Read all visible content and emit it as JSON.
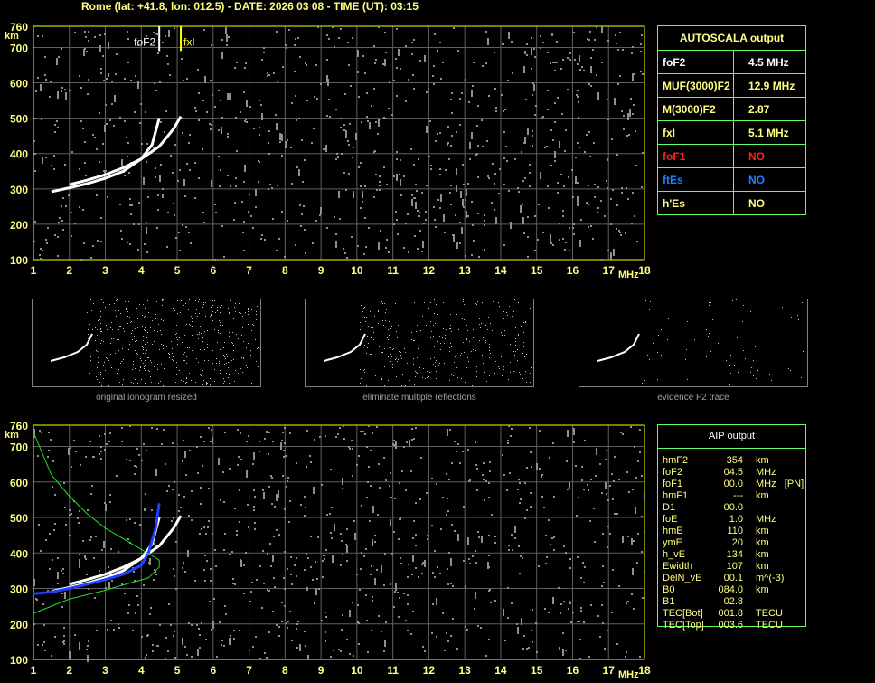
{
  "title": "Rome (lat: +41.8, lon: 012.5) - DATE: 2026 03 08 - TIME (UT): 03:15",
  "chart_data": [
    {
      "type": "scatter",
      "name": "ionogram-autoscala",
      "xlabel": "MHz",
      "ylabel": "km",
      "xlim": [
        1,
        18
      ],
      "ylim": [
        100,
        760
      ],
      "xticks": [
        1,
        2,
        3,
        4,
        5,
        6,
        7,
        8,
        9,
        10,
        11,
        12,
        13,
        14,
        15,
        16,
        17,
        18
      ],
      "yticks": [
        100,
        200,
        300,
        400,
        500,
        600,
        700,
        760
      ],
      "grid": true,
      "markers": [
        {
          "label": "foF2",
          "x": 4.5,
          "color": "#ffffff"
        },
        {
          "label": "fxI",
          "x": 5.1,
          "color": "#ffff00"
        }
      ],
      "traces": [
        {
          "color": "#ffffff",
          "points": [
            [
              1.5,
              292
            ],
            [
              2,
              303
            ],
            [
              2.5,
              315
            ],
            [
              3,
              330
            ],
            [
              3.5,
              350
            ],
            [
              4,
              385
            ],
            [
              4.3,
              425
            ],
            [
              4.5,
              500
            ]
          ]
        },
        {
          "color": "#ffffff",
          "points": [
            [
              2,
              312
            ],
            [
              2.5,
              325
            ],
            [
              3,
              340
            ],
            [
              3.5,
              360
            ],
            [
              4,
              385
            ],
            [
              4.5,
              420
            ],
            [
              4.9,
              470
            ],
            [
              5.1,
              505
            ]
          ]
        }
      ]
    },
    {
      "type": "scatter",
      "name": "ionogram-aip",
      "xlabel": "MHz",
      "ylabel": "km",
      "xlim": [
        1,
        18
      ],
      "ylim": [
        100,
        760
      ],
      "xticks": [
        1,
        2,
        3,
        4,
        5,
        6,
        7,
        8,
        9,
        10,
        11,
        12,
        13,
        14,
        15,
        16,
        17,
        18
      ],
      "yticks": [
        100,
        200,
        300,
        400,
        500,
        600,
        700,
        760
      ],
      "grid": true,
      "traces": [
        {
          "color": "#ffffff",
          "points": [
            [
              1.5,
              292
            ],
            [
              2,
              303
            ],
            [
              2.5,
              315
            ],
            [
              3,
              330
            ],
            [
              3.5,
              350
            ],
            [
              4,
              385
            ],
            [
              4.3,
              425
            ],
            [
              4.5,
              500
            ]
          ]
        },
        {
          "color": "#ffffff",
          "points": [
            [
              2,
              312
            ],
            [
              2.5,
              325
            ],
            [
              3,
              340
            ],
            [
              3.5,
              360
            ],
            [
              4,
              385
            ],
            [
              4.5,
              420
            ],
            [
              4.9,
              470
            ],
            [
              5.1,
              505
            ]
          ]
        },
        {
          "color": "#2040ff",
          "points": [
            [
              1,
              285
            ],
            [
              1.5,
              290
            ],
            [
              2,
              300
            ],
            [
              2.5,
              312
            ],
            [
              3,
              325
            ],
            [
              3.5,
              340
            ],
            [
              4,
              365
            ],
            [
              4.2,
              400
            ],
            [
              4.4,
              470
            ],
            [
              4.5,
              540
            ]
          ]
        },
        {
          "color": "#20e020",
          "points": [
            [
              1,
              740
            ],
            [
              1.5,
              620
            ],
            [
              2,
              560
            ],
            [
              2.5,
              510
            ],
            [
              3,
              470
            ],
            [
              3.5,
              440
            ],
            [
              4,
              410
            ],
            [
              4.5,
              380
            ],
            [
              4.5,
              360
            ],
            [
              4.2,
              330
            ],
            [
              3.5,
              310
            ],
            [
              3,
              295
            ],
            [
              2,
              270
            ],
            [
              1,
              230
            ]
          ]
        }
      ]
    }
  ],
  "autoscala": {
    "header": "AUTOSCALA output",
    "rows": [
      {
        "label": "foF2",
        "value": "4.5 MHz",
        "color": "#ffffff"
      },
      {
        "label": "MUF(3000)F2",
        "value": "12.9 MHz",
        "color": "#ffff80"
      },
      {
        "label": "M(3000)F2",
        "value": "2.87",
        "color": "#ffff80"
      },
      {
        "label": "fxI",
        "value": "5.1 MHz",
        "color": "#ffff80"
      },
      {
        "label": "foF1",
        "value": "NO",
        "color": "#ff2020"
      },
      {
        "label": "ftEs",
        "value": "NO",
        "color": "#2080ff"
      },
      {
        "label": "h'Es",
        "value": "NO",
        "color": "#ffff80"
      }
    ]
  },
  "thumbs": [
    {
      "caption": "original ionogram resized"
    },
    {
      "caption": "eliminate multiple reflections"
    },
    {
      "caption": "evidence F2 trace"
    }
  ],
  "aip": {
    "header": "AIP output",
    "rows": [
      [
        "hmF2",
        "354",
        "km"
      ],
      [
        "foF2",
        "04.5",
        "MHz"
      ],
      [
        "foF1",
        "00.0",
        "MHz   [PN]"
      ],
      [
        "hmF1",
        "---",
        "km"
      ],
      [
        "D1",
        "00.0",
        ""
      ],
      [
        "foE",
        "1.0",
        "MHz"
      ],
      [
        "hmE",
        "110",
        "km"
      ],
      [
        "ymE",
        "20",
        "km"
      ],
      [
        "h_vE",
        "134",
        "km"
      ],
      [
        "Ewidth",
        "107",
        "km"
      ],
      [
        "DelN_vE",
        "00.1",
        "m^(-3)"
      ],
      [
        "B0",
        "084.0",
        "km"
      ],
      [
        "B1",
        "02.8",
        ""
      ],
      [
        "TEC[Bot]",
        "001.8",
        "TECU"
      ],
      [
        "TEC[Top]",
        "003.6",
        "TECU"
      ]
    ]
  }
}
